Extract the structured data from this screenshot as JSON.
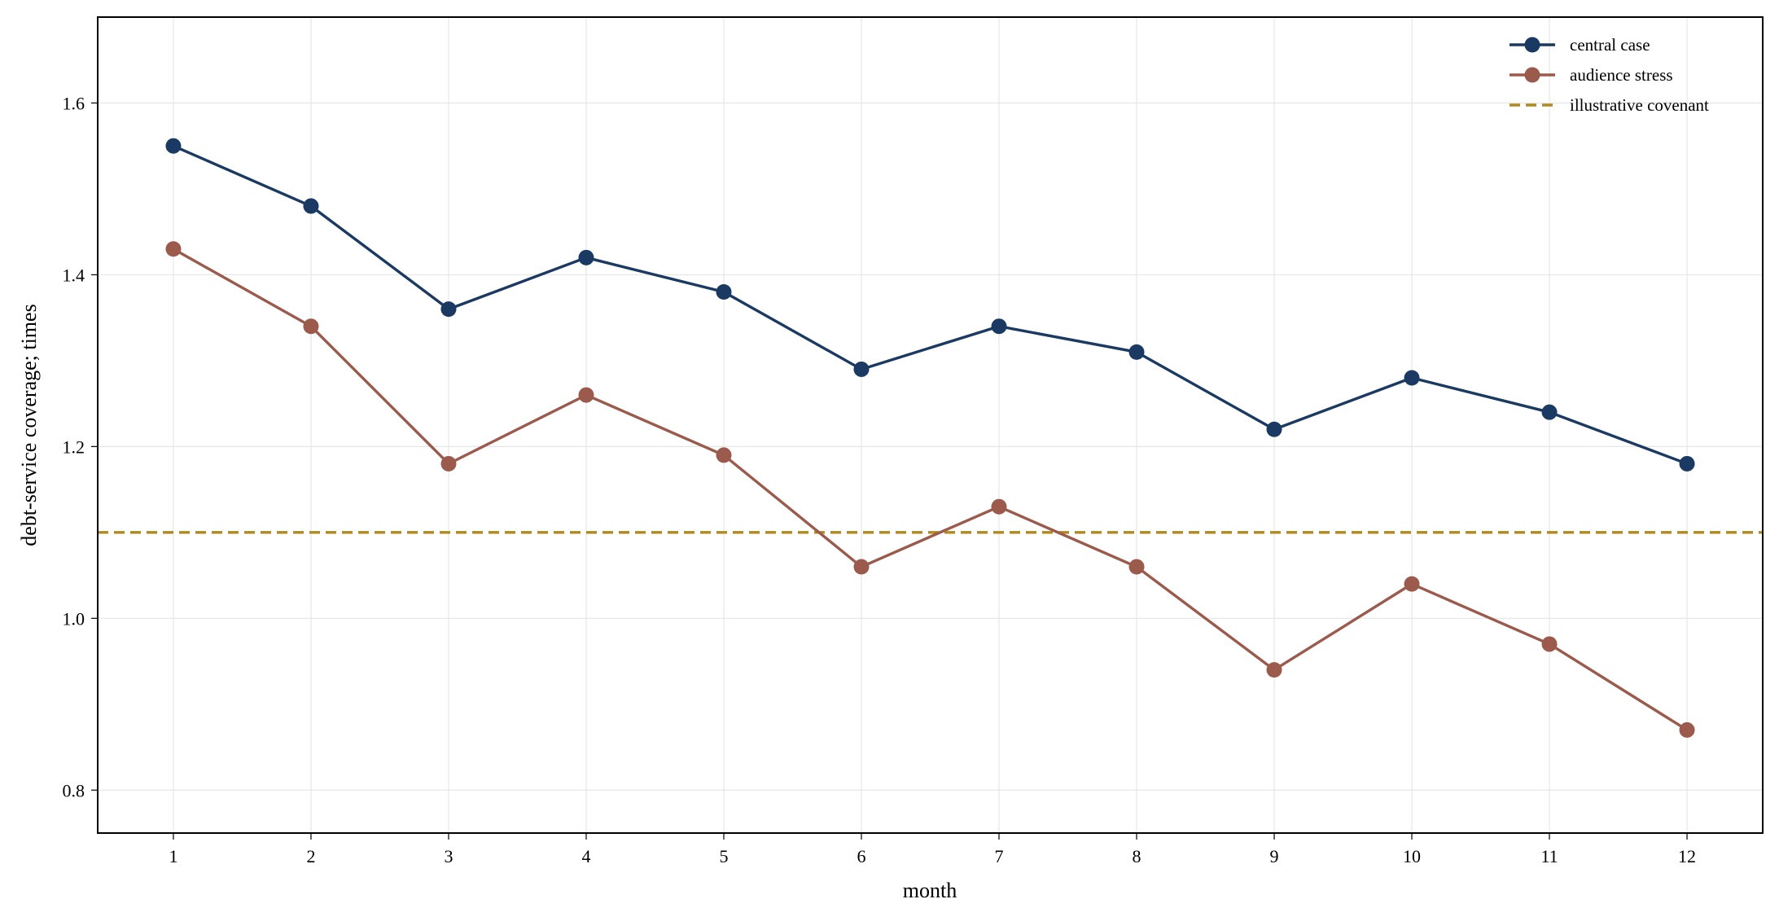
{
  "chart_data": {
    "type": "line",
    "xlabel": "month",
    "ylabel": "debt-service coverage; times",
    "x": [
      1,
      2,
      3,
      4,
      5,
      6,
      7,
      8,
      9,
      10,
      11,
      12
    ],
    "xticks": [
      "1",
      "2",
      "3",
      "4",
      "5",
      "6",
      "7",
      "8",
      "9",
      "10",
      "11",
      "12"
    ],
    "xlim": [
      0.45,
      12.55
    ],
    "ylim": [
      0.75,
      1.7
    ],
    "yticks": [
      0.8,
      1.0,
      1.2,
      1.4,
      1.6
    ],
    "ytick_labels": [
      "0.8",
      "1.0",
      "1.2",
      "1.4",
      "1.6"
    ],
    "grid": true,
    "legend_position": "top-right",
    "series": [
      {
        "name": "central case",
        "color": "#1b3a63",
        "style": "solid-with-markers",
        "values": [
          1.55,
          1.48,
          1.36,
          1.42,
          1.38,
          1.29,
          1.34,
          1.31,
          1.22,
          1.28,
          1.24,
          1.18
        ]
      },
      {
        "name": "audience stress",
        "color": "#9b5a4c",
        "style": "solid-with-markers",
        "values": [
          1.43,
          1.34,
          1.18,
          1.26,
          1.19,
          1.06,
          1.13,
          1.06,
          0.94,
          1.04,
          0.97,
          0.87
        ]
      }
    ],
    "reference_lines": [
      {
        "name": "illustrative covenant",
        "color": "#b08a1e",
        "style": "dashed",
        "y": 1.1
      }
    ]
  }
}
